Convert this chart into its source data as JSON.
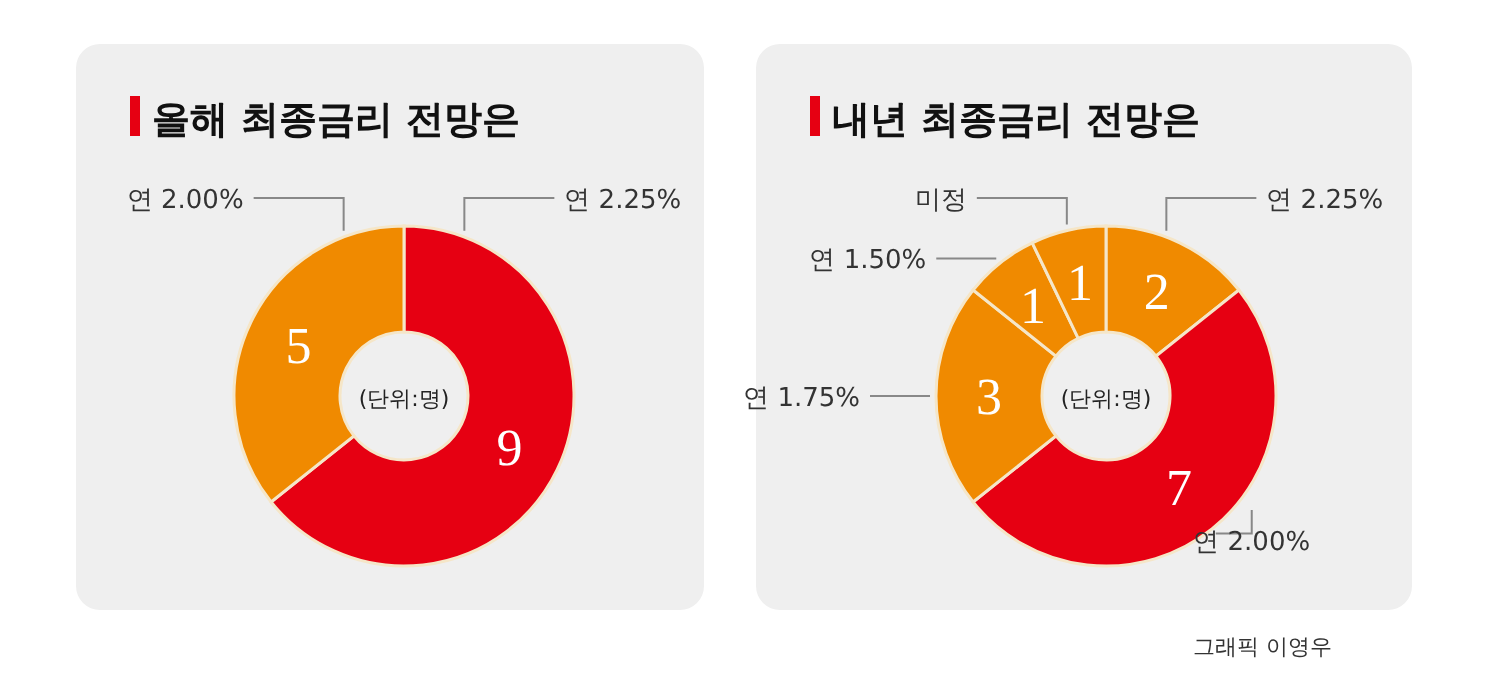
{
  "chart_data": [
    {
      "type": "donut",
      "title": "올해 최종금리 전망은",
      "categories": [
        "연 2.25%",
        "연 2.00%"
      ],
      "values": [
        9,
        5
      ],
      "colors": [
        "#e60012",
        "#f08a00"
      ],
      "data_labels": true,
      "annotations": [
        "(단위:명)"
      ]
    },
    {
      "type": "donut",
      "title": "내년 최종금리 전망은",
      "categories": [
        "연 2.25%",
        "연 2.00%",
        "연 1.75%",
        "연 1.50%",
        "미정"
      ],
      "values": [
        2,
        7,
        3,
        1,
        1
      ],
      "colors": [
        "#f08a00",
        "#e60012",
        "#f08a00",
        "#f08a00",
        "#f08a00"
      ],
      "data_labels": true,
      "annotations": [
        "(단위:명)",
        "그래픽 이영우"
      ]
    }
  ]
}
